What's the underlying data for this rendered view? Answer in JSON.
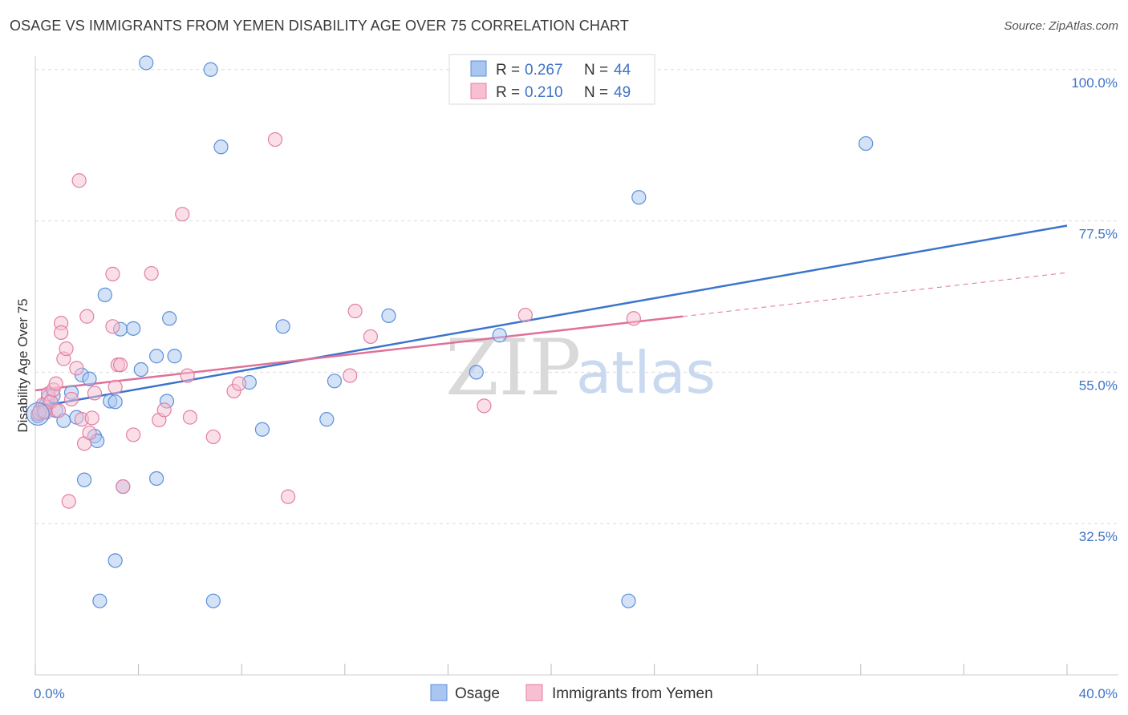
{
  "title": "OSAGE VS IMMIGRANTS FROM YEMEN DISABILITY AGE OVER 75 CORRELATION CHART",
  "source": "Source: ZipAtlas.com",
  "watermark": {
    "zip": "ZIP",
    "atlas": "atlas"
  },
  "legend": {
    "r_label": "R =",
    "n_label": "N =",
    "rows": [
      {
        "r": "0.267",
        "n": "44",
        "color": "#a9c6f0",
        "stroke": "#5b8fd9"
      },
      {
        "r": "0.210",
        "n": "49",
        "color": "#f7bfd1",
        "stroke": "#e27fa3"
      }
    ]
  },
  "bottom_legend": [
    "Osage",
    "Immigrants from Yemen"
  ],
  "chart_data": {
    "type": "scatter",
    "xlabel": "",
    "ylabel": "Disability Age Over 75",
    "xlim": [
      0,
      40
    ],
    "ylim": [
      10,
      102
    ],
    "x_tick_labels": [
      {
        "v": 0,
        "label": "0.0%"
      },
      {
        "v": 40,
        "label": "40.0%"
      }
    ],
    "y_tick_labels": [
      {
        "v": 100,
        "label": "100.0%"
      },
      {
        "v": 77.5,
        "label": "77.5%"
      },
      {
        "v": 55,
        "label": "55.0%"
      },
      {
        "v": 32.5,
        "label": "32.5%"
      }
    ],
    "grid": true,
    "series": [
      {
        "name": "Osage",
        "color": "#a9c6f0",
        "stroke": "#5b8fd9",
        "line_color": "#3b74cc",
        "trend": {
          "x": [
            0,
            40
          ],
          "y": [
            49.8,
            76.8
          ]
        },
        "points": [
          [
            0.1,
            48.5
          ],
          [
            0.2,
            49.5
          ],
          [
            0.3,
            49.0
          ],
          [
            0.4,
            50.2
          ],
          [
            0.5,
            51.3
          ],
          [
            0.7,
            51.5
          ],
          [
            0.8,
            49.3
          ],
          [
            1.1,
            47.8
          ],
          [
            1.4,
            52.0
          ],
          [
            1.6,
            48.3
          ],
          [
            1.8,
            54.6
          ],
          [
            2.1,
            54.0
          ],
          [
            2.3,
            45.5
          ],
          [
            2.4,
            44.8
          ],
          [
            1.9,
            39.0
          ],
          [
            2.7,
            66.5
          ],
          [
            2.9,
            50.7
          ],
          [
            3.1,
            50.6
          ],
          [
            3.3,
            61.4
          ],
          [
            3.8,
            61.5
          ],
          [
            4.1,
            55.4
          ],
          [
            4.7,
            57.4
          ],
          [
            5.1,
            50.7
          ],
          [
            5.2,
            63.0
          ],
          [
            5.4,
            57.4
          ],
          [
            3.4,
            38.0
          ],
          [
            4.7,
            39.2
          ],
          [
            3.1,
            27.0
          ],
          [
            2.5,
            21.0
          ],
          [
            4.3,
            101.0
          ],
          [
            6.8,
            100.0
          ],
          [
            7.2,
            88.5
          ],
          [
            8.3,
            53.5
          ],
          [
            8.8,
            46.5
          ],
          [
            9.6,
            61.8
          ],
          [
            11.3,
            48.0
          ],
          [
            11.6,
            53.7
          ],
          [
            13.7,
            63.4
          ],
          [
            17.1,
            55.0
          ],
          [
            18.0,
            60.5
          ],
          [
            6.9,
            21.0
          ],
          [
            23.4,
            81.0
          ],
          [
            23.0,
            21.0
          ],
          [
            32.2,
            89.0
          ]
        ]
      },
      {
        "name": "Immigrants from Yemen",
        "color": "#f7bfd1",
        "stroke": "#e27fa3",
        "line_color": "#e0719a",
        "trend": {
          "x": [
            0,
            25.1
          ],
          "y": [
            52.3,
            63.3
          ]
        },
        "trend_ext": {
          "x": [
            25.1,
            40
          ],
          "y": [
            63.3,
            69.8
          ]
        },
        "points": [
          [
            0.1,
            48.8
          ],
          [
            0.2,
            49.4
          ],
          [
            0.3,
            50.2
          ],
          [
            0.4,
            49.0
          ],
          [
            0.5,
            51.8
          ],
          [
            0.6,
            50.6
          ],
          [
            0.7,
            52.4
          ],
          [
            0.8,
            53.3
          ],
          [
            0.9,
            49.3
          ],
          [
            1.0,
            62.3
          ],
          [
            1.0,
            60.9
          ],
          [
            1.1,
            57.0
          ],
          [
            1.2,
            58.5
          ],
          [
            1.3,
            35.8
          ],
          [
            1.4,
            51.0
          ],
          [
            1.6,
            55.6
          ],
          [
            1.7,
            83.5
          ],
          [
            1.8,
            48.0
          ],
          [
            1.9,
            44.4
          ],
          [
            2.0,
            63.3
          ],
          [
            2.1,
            46.0
          ],
          [
            2.2,
            48.2
          ],
          [
            2.3,
            51.9
          ],
          [
            3.0,
            69.6
          ],
          [
            3.0,
            61.8
          ],
          [
            3.1,
            52.8
          ],
          [
            3.2,
            56.1
          ],
          [
            3.3,
            56.1
          ],
          [
            3.4,
            38.0
          ],
          [
            3.8,
            45.7
          ],
          [
            4.5,
            69.7
          ],
          [
            4.8,
            47.9
          ],
          [
            5.0,
            49.4
          ],
          [
            5.7,
            78.5
          ],
          [
            5.9,
            54.5
          ],
          [
            6.0,
            48.3
          ],
          [
            6.9,
            45.4
          ],
          [
            7.7,
            52.2
          ],
          [
            7.9,
            53.3
          ],
          [
            9.3,
            89.6
          ],
          [
            9.8,
            36.5
          ],
          [
            12.2,
            54.5
          ],
          [
            12.4,
            64.1
          ],
          [
            13.0,
            60.3
          ],
          [
            17.4,
            50.0
          ],
          [
            19.0,
            63.5
          ],
          [
            23.2,
            63.0
          ],
          [
            0.15,
            49.0
          ],
          [
            0.35,
            49.2
          ]
        ]
      }
    ]
  }
}
